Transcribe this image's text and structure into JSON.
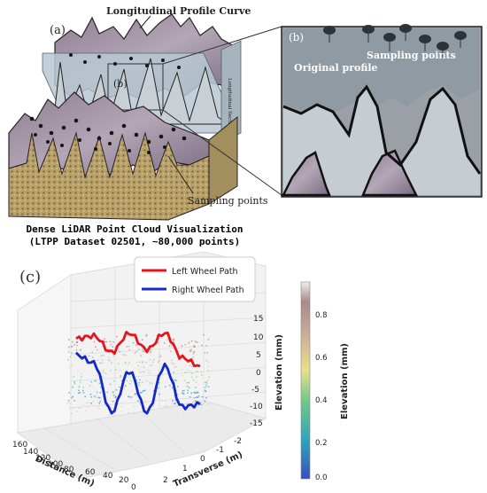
{
  "panel_a": {
    "label": "(a)",
    "inner_label": "(b)",
    "curve_label": "Longitudinal Profile Curve",
    "section_label": "Longitudinal Section",
    "sampling_label": "Sampling points"
  },
  "panel_b": {
    "label": "(b)",
    "original_profile": "Original profile",
    "sampling_label": "Sampling points"
  },
  "panel_c": {
    "label": "(c)",
    "title_line1": "Dense LiDAR Point Cloud Visualization",
    "title_line2": "(LTPP Dataset 02501, ~80,000 points)",
    "legend": [
      {
        "name": "Left Wheel Path",
        "color": "#e8141c"
      },
      {
        "name": "Right Wheel Path",
        "color": "#1428c8"
      }
    ],
    "axes": {
      "x_label": "Distance (m)",
      "x_ticks": [
        "160",
        "140",
        "120",
        "100",
        "80",
        "60",
        "40",
        "20",
        "0"
      ],
      "y_label": "Transverse (m)",
      "y_ticks": [
        "-2",
        "-1",
        "0",
        "1",
        "2"
      ],
      "z_label": "Elevation (mm)",
      "z_ticks": [
        "15",
        "10",
        "5",
        "0",
        "-5",
        "-10",
        "-15"
      ]
    },
    "colorbar": {
      "label": "Elevation (mm)",
      "ticks": [
        "0.8",
        "0.6",
        "0.4",
        "0.2",
        "0.0"
      ]
    }
  },
  "chart_data": {
    "type": "line",
    "title": "Dense LiDAR Point Cloud Visualization (LTPP Dataset 02501, ~80,000 points)",
    "xlabel": "Distance (m)",
    "ylabel": "Transverse (m)",
    "zlabel": "Elevation (mm)",
    "xlim": [
      0,
      160
    ],
    "ylim": [
      -2,
      2
    ],
    "zlim": [
      -15,
      15
    ],
    "colorbar_range": [
      0.0,
      0.9
    ],
    "series": [
      {
        "name": "Left Wheel Path",
        "color": "#e8141c",
        "x": [
          150,
          130,
          110,
          90,
          70,
          50,
          30,
          10
        ],
        "z": [
          11,
          12,
          6,
          13,
          7,
          13,
          4,
          1
        ]
      },
      {
        "name": "Right Wheel Path",
        "color": "#1428c8",
        "x": [
          150,
          130,
          110,
          90,
          70,
          50,
          30,
          10
        ],
        "z": [
          9,
          6,
          -12,
          3,
          -12,
          5,
          -10,
          -9
        ]
      }
    ]
  }
}
